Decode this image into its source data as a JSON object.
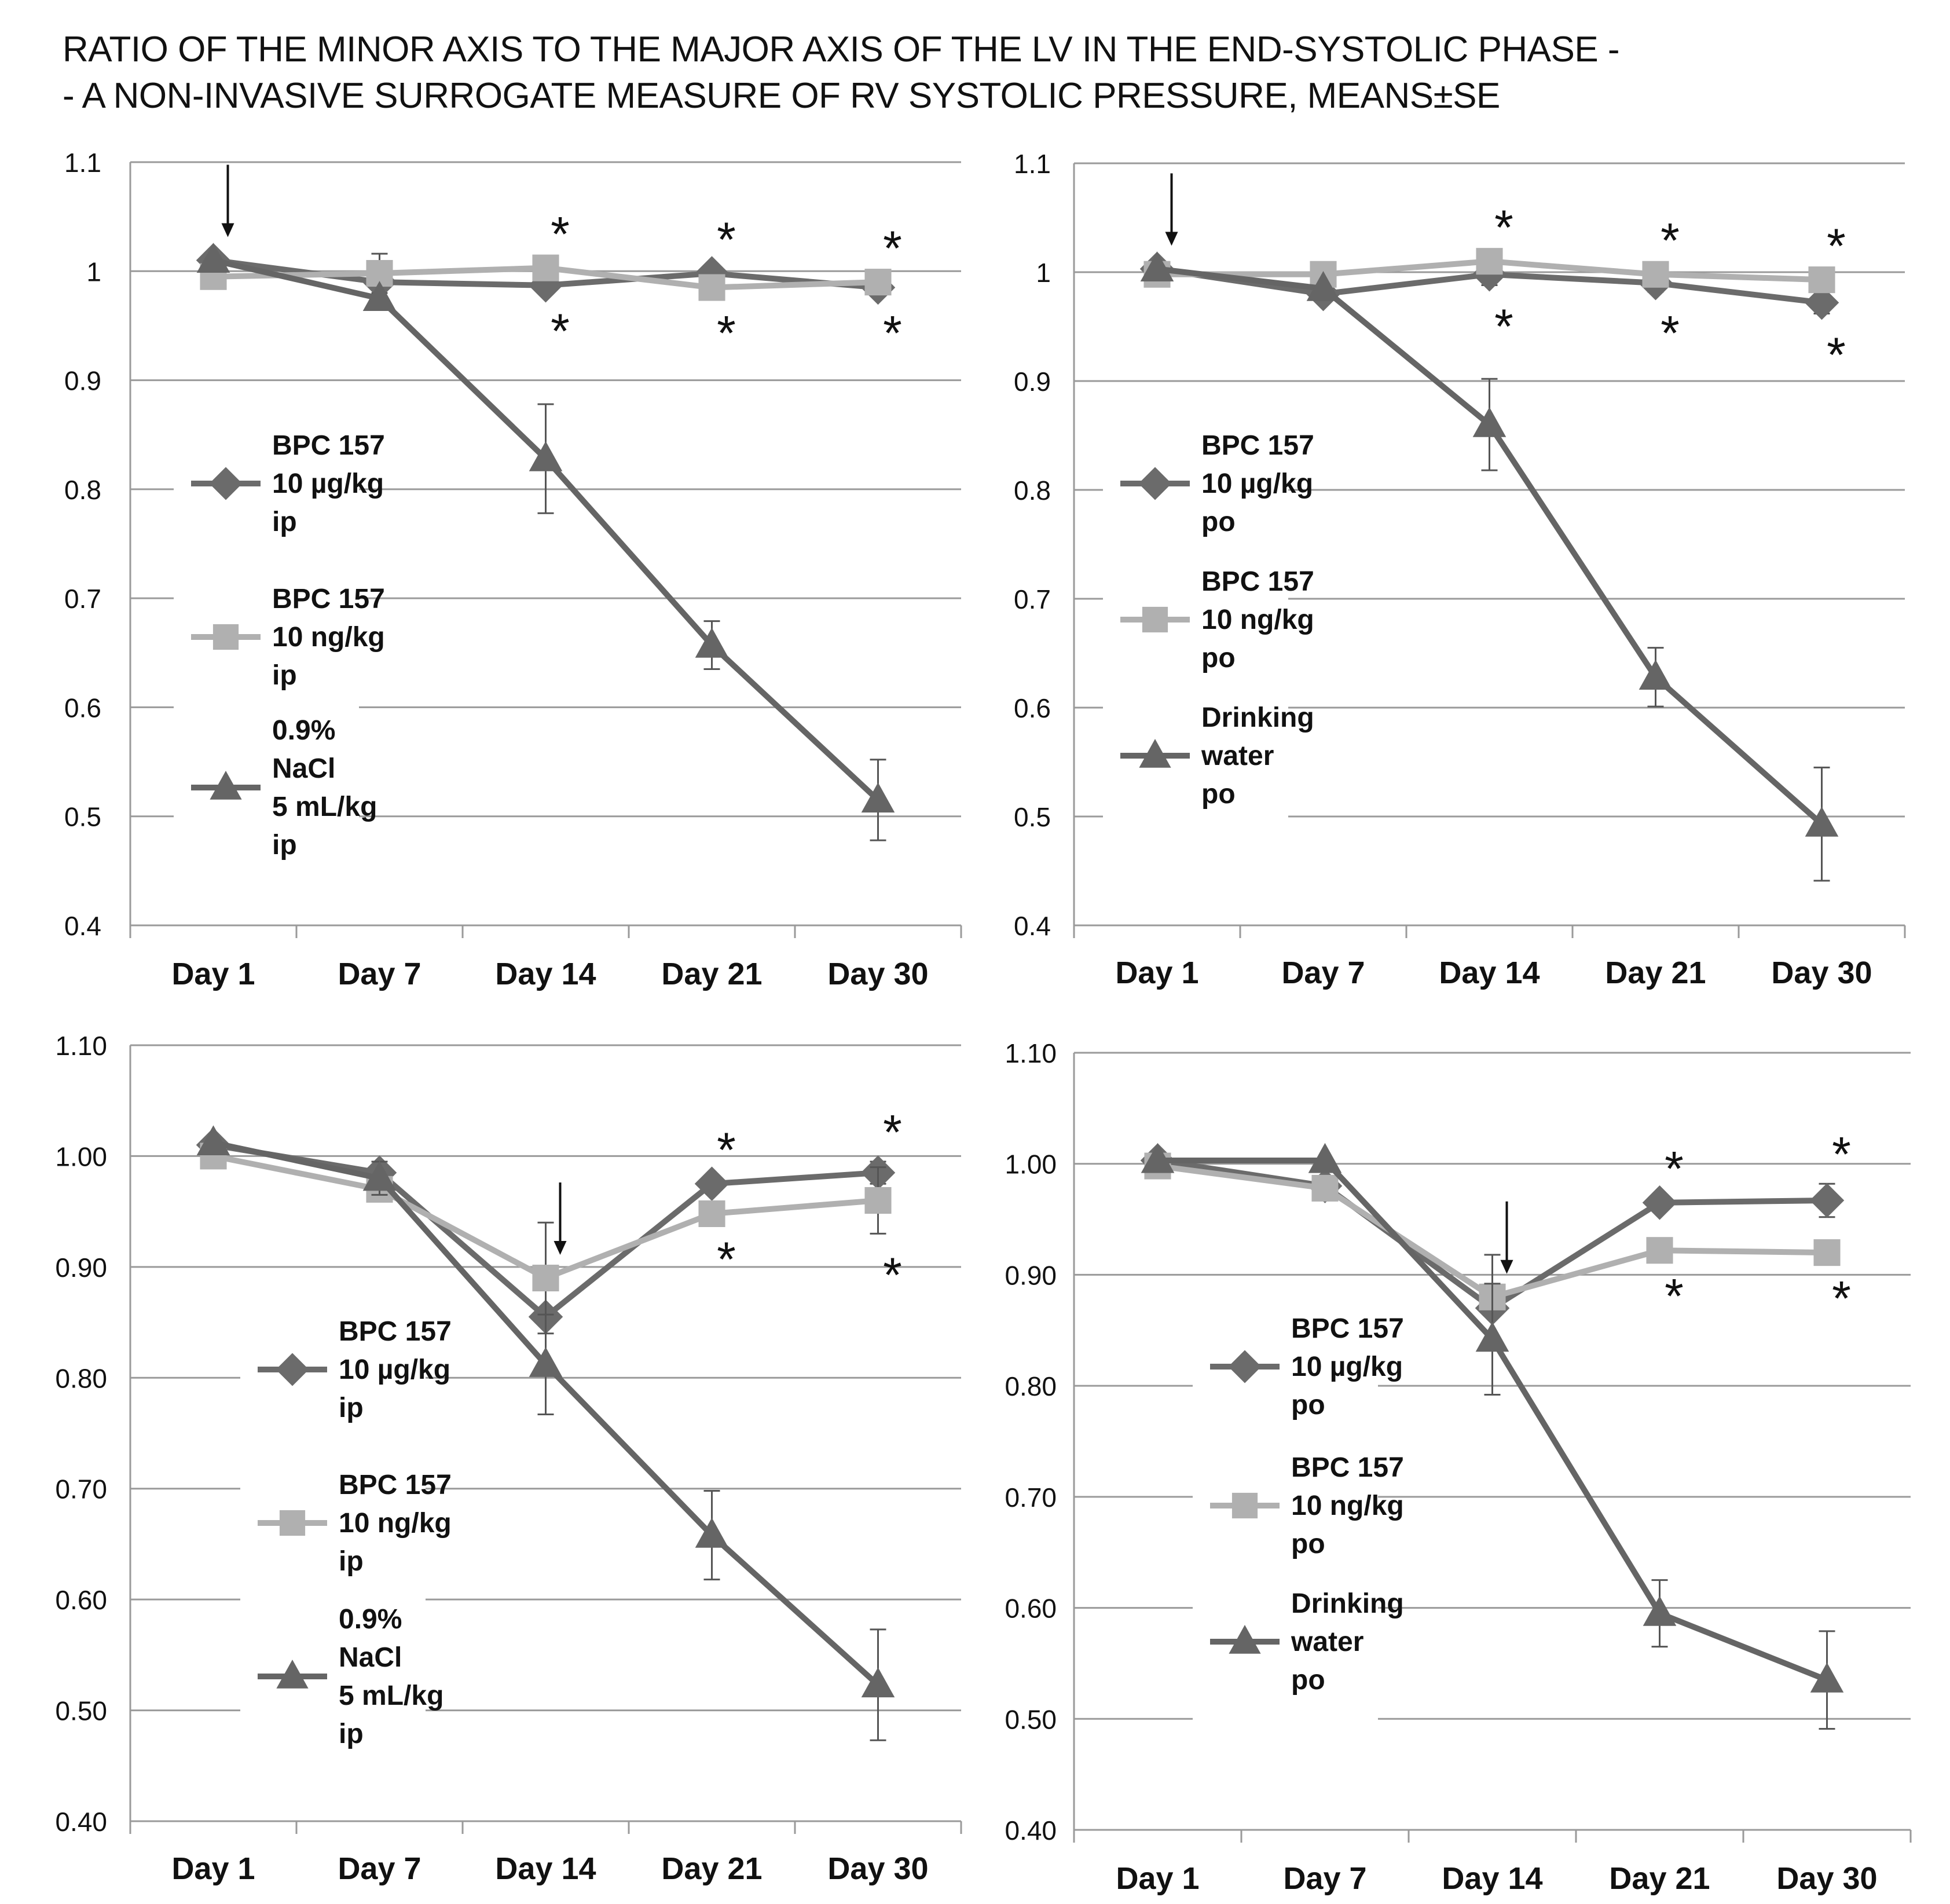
{
  "title": {
    "line1": "RATIO OF THE MINOR AXIS TO THE MAJOR AXIS OF THE LV IN THE END-SYSTOLIC PHASE -",
    "line2": "- A NON-INVASIVE SURROGATE MEASURE OF RV SYSTOLIC PRESSURE, MEANS±SE"
  },
  "colors": {
    "dark_series": "#6b6b6b",
    "light_series": "#b0b0b0",
    "triangle_series": "#656565",
    "grid": "#9a9a9a",
    "text": "#111111"
  },
  "chart_data": [
    {
      "type": "line",
      "panel": "top-left",
      "categories": [
        "Day 1",
        "Day 7",
        "Day 14",
        "Day 21",
        "Day 30"
      ],
      "ylim": [
        0.4,
        1.1
      ],
      "yticks": [
        "0.4",
        "0.5",
        "0.6",
        "0.7",
        "0.8",
        "0.9",
        "1",
        "1.1"
      ],
      "arrow_at": "Day 1",
      "series": [
        {
          "name": "BPC 157 10 µg/kg ip",
          "legend": [
            "BPC 157",
            "10 µg/kg",
            "ip"
          ],
          "marker": "diamond",
          "style": "dark",
          "values": [
            1.01,
            0.99,
            0.987,
            0.998,
            0.985
          ],
          "se": [
            0.004,
            0.004,
            0.004,
            0.004,
            0.004
          ]
        },
        {
          "name": "BPC 157 10 ng/kg ip",
          "legend": [
            "BPC 157",
            "10 ng/kg",
            "ip"
          ],
          "marker": "square",
          "style": "light",
          "values": [
            0.995,
            0.998,
            1.003,
            0.985,
            0.99
          ],
          "se": [
            0.004,
            0.018,
            0.004,
            0.004,
            0.004
          ]
        },
        {
          "name": "0.9% NaCl 5 mL/kg ip",
          "legend": [
            "0.9%",
            "NaCl",
            "5 mL/kg",
            "ip"
          ],
          "marker": "triangle",
          "style": "triangle",
          "values": [
            1.01,
            0.975,
            0.828,
            0.657,
            0.515
          ],
          "se": [
            0.004,
            0.004,
            0.05,
            0.022,
            0.037
          ]
        }
      ],
      "stars": {
        "above": [
          "Day 14",
          "Day 21",
          "Day 30"
        ],
        "below": [
          "Day 14",
          "Day 21",
          "Day 30"
        ],
        "symbol": "*"
      }
    },
    {
      "type": "line",
      "panel": "top-right",
      "categories": [
        "Day 1",
        "Day 7",
        "Day 14",
        "Day 21",
        "Day 30"
      ],
      "ylim": [
        0.4,
        1.1
      ],
      "yticks": [
        "0.4",
        "0.5",
        "0.6",
        "0.7",
        "0.8",
        "0.9",
        "1",
        "1.1"
      ],
      "arrow_at": "Day 1",
      "series": [
        {
          "name": "BPC 157 10 µg/kg po",
          "legend": [
            "BPC 157",
            "10 µg/kg",
            "po"
          ],
          "marker": "diamond",
          "style": "dark",
          "values": [
            1.003,
            0.98,
            0.998,
            0.99,
            0.972
          ],
          "se": [
            0.004,
            0.004,
            0.01,
            0.008,
            0.01
          ]
        },
        {
          "name": "BPC 157 10 ng/kg po",
          "legend": [
            "BPC 157",
            "10 ng/kg",
            "po"
          ],
          "marker": "square",
          "style": "light",
          "values": [
            0.998,
            0.998,
            1.01,
            0.998,
            0.993
          ],
          "se": [
            0.004,
            0.004,
            0.004,
            0.004,
            0.004
          ]
        },
        {
          "name": "Drinking water po",
          "legend": [
            "Drinking",
            "water",
            "po"
          ],
          "marker": "triangle",
          "style": "triangle",
          "values": [
            1.003,
            0.985,
            0.86,
            0.628,
            0.493
          ],
          "se": [
            0.004,
            0.004,
            0.042,
            0.027,
            0.052
          ]
        }
      ],
      "stars": {
        "above": [
          "Day 14",
          "Day 21",
          "Day 30"
        ],
        "below": [
          "Day 14",
          "Day 21",
          "Day 30"
        ],
        "symbol": "*"
      }
    },
    {
      "type": "line",
      "panel": "bottom-left",
      "categories": [
        "Day 1",
        "Day 7",
        "Day 14",
        "Day 21",
        "Day 30"
      ],
      "ylim": [
        0.4,
        1.1
      ],
      "yticks": [
        "0.40",
        "0.50",
        "0.60",
        "0.70",
        "0.80",
        "0.90",
        "1.00",
        "1.10"
      ],
      "arrow_at": "Day 14",
      "series": [
        {
          "name": "BPC 157 10 µg/kg ip",
          "legend": [
            "BPC 157",
            "10 µg/kg",
            "ip"
          ],
          "marker": "diamond",
          "style": "dark",
          "values": [
            1.01,
            0.985,
            0.855,
            0.975,
            0.985
          ],
          "se": [
            0.004,
            0.004,
            0.004,
            0.004,
            0.01
          ]
        },
        {
          "name": "BPC 157 10 ng/kg ip",
          "legend": [
            "BPC 157",
            "10 ng/kg",
            "ip"
          ],
          "marker": "square",
          "style": "light",
          "values": [
            1.0,
            0.97,
            0.89,
            0.948,
            0.96
          ],
          "se": [
            0.004,
            0.004,
            0.05,
            0.004,
            0.03
          ]
        },
        {
          "name": "0.9% NaCl 5 mL/kg ip",
          "legend": [
            "0.9%",
            "NaCl",
            "5 mL/kg",
            "ip"
          ],
          "marker": "triangle",
          "style": "triangle",
          "values": [
            1.012,
            0.98,
            0.812,
            0.658,
            0.523
          ],
          "se": [
            0.004,
            0.015,
            0.045,
            0.04,
            0.05
          ]
        }
      ],
      "stars": {
        "above": [
          "Day 21",
          "Day 30"
        ],
        "below": [
          "Day 21",
          "Day 30"
        ],
        "symbol": "*"
      }
    },
    {
      "type": "line",
      "panel": "bottom-right",
      "categories": [
        "Day 1",
        "Day 7",
        "Day 14",
        "Day 21",
        "Day 30"
      ],
      "ylim": [
        0.4,
        1.1
      ],
      "yticks": [
        "0.40",
        "0.50",
        "0.60",
        "0.70",
        "0.80",
        "0.90",
        "1.00",
        "1.10"
      ],
      "arrow_at": "Day 14",
      "series": [
        {
          "name": "BPC 157 10 µg/kg po",
          "legend": [
            "BPC 157",
            "10 µg/kg",
            "po"
          ],
          "marker": "diamond",
          "style": "dark",
          "values": [
            1.003,
            0.98,
            0.87,
            0.965,
            0.967
          ],
          "se": [
            0.004,
            0.004,
            0.004,
            0.004,
            0.015
          ]
        },
        {
          "name": "BPC 157 10 ng/kg po",
          "legend": [
            "BPC 157",
            "10 ng/kg",
            "po"
          ],
          "marker": "square",
          "style": "light",
          "values": [
            0.998,
            0.978,
            0.88,
            0.922,
            0.92
          ],
          "se": [
            0.004,
            0.004,
            0.038,
            0.004,
            0.004
          ]
        },
        {
          "name": "Drinking water po",
          "legend": [
            "Drinking",
            "water",
            "po"
          ],
          "marker": "triangle",
          "style": "triangle",
          "values": [
            1.003,
            1.003,
            0.842,
            0.595,
            0.535
          ],
          "se": [
            0.004,
            0.004,
            0.05,
            0.03,
            0.044
          ]
        }
      ],
      "stars": {
        "above": [
          "Day 21",
          "Day 30"
        ],
        "below": [
          "Day 21",
          "Day 30"
        ],
        "symbol": "*"
      }
    }
  ]
}
